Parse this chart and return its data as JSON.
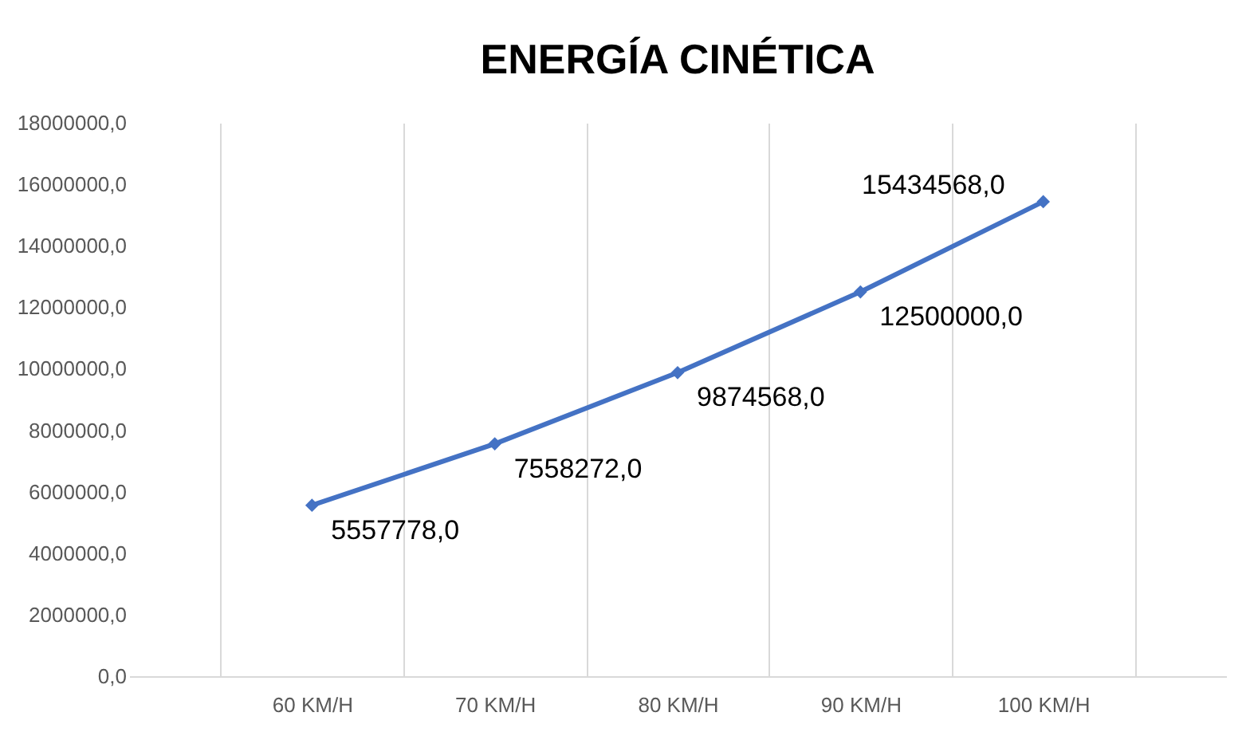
{
  "chart_data": {
    "type": "line",
    "title": "ENERGÍA CINÉTICA",
    "categories": [
      "60 KM/H",
      "70 KM/H",
      "80 KM/H",
      "90 KM/H",
      "100 KM/H"
    ],
    "series": [
      {
        "color": "#4472c4",
        "values": [
          5557778,
          7558272,
          9874568,
          12500000,
          15434568
        ],
        "value_labels": [
          "5557778,0",
          "7558272,0",
          "9874568,0",
          "12500000,0",
          "15434568,0"
        ]
      }
    ],
    "ylim": [
      0,
      18000000
    ],
    "yticks": [
      {
        "value": 0,
        "label": "0,0"
      },
      {
        "value": 2000000,
        "label": "2000000,0"
      },
      {
        "value": 4000000,
        "label": "4000000,0"
      },
      {
        "value": 6000000,
        "label": "6000000,0"
      },
      {
        "value": 8000000,
        "label": "8000000,0"
      },
      {
        "value": 10000000,
        "label": "10000000,0"
      },
      {
        "value": 12000000,
        "label": "12000000,0"
      },
      {
        "value": 14000000,
        "label": "14000000,0"
      },
      {
        "value": 16000000,
        "label": "16000000,0"
      },
      {
        "value": 18000000,
        "label": "18000000,0"
      }
    ],
    "grid": "x",
    "marker": "diamond",
    "line_style": "solid"
  }
}
